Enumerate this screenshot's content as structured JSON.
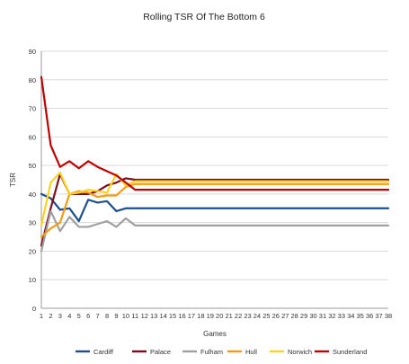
{
  "chart_data": {
    "type": "line",
    "title": "Rolling TSR Of The Bottom 6",
    "xlabel": "Games",
    "ylabel": "TSR",
    "x": [
      1,
      2,
      3,
      4,
      5,
      6,
      7,
      8,
      9,
      10,
      11,
      12,
      13,
      14,
      15,
      16,
      17,
      18,
      19,
      20,
      21,
      22,
      23,
      24,
      25,
      26,
      27,
      28,
      29,
      30,
      31,
      32,
      33,
      34,
      35,
      36,
      37,
      38
    ],
    "xlim": [
      1,
      38
    ],
    "ylim": [
      0,
      90
    ],
    "yticks": [
      0,
      10,
      20,
      30,
      40,
      50,
      60,
      70,
      80,
      90
    ],
    "grid": true,
    "legend_position": "bottom",
    "series": [
      {
        "name": "Cardiff",
        "color": "#1f4e8c",
        "values": [
          40,
          38.5,
          34.5,
          35,
          30.5,
          38,
          37,
          37.5,
          34,
          35,
          35,
          35,
          35,
          35,
          35,
          35,
          35,
          35,
          35,
          35,
          35,
          35,
          35,
          35,
          35,
          35,
          35,
          35,
          35,
          35,
          35,
          35,
          35,
          35,
          35,
          35,
          35,
          35
        ]
      },
      {
        "name": "Palace",
        "color": "#7b0f1e",
        "values": [
          22,
          35,
          47,
          40,
          40,
          40,
          41,
          43,
          44,
          45.5,
          45,
          45,
          45,
          45,
          45,
          45,
          45,
          45,
          45,
          45,
          45,
          45,
          45,
          45,
          45,
          45,
          45,
          45,
          45,
          45,
          45,
          45,
          45,
          45,
          45,
          45,
          45,
          45
        ]
      },
      {
        "name": "Fulham",
        "color": "#a0a0a0",
        "values": [
          20,
          34,
          27,
          32,
          28.5,
          28.5,
          29.5,
          30.5,
          28.5,
          31.5,
          29,
          29,
          29,
          29,
          29,
          29,
          29,
          29,
          29,
          29,
          29,
          29,
          29,
          29,
          29,
          29,
          29,
          29,
          29,
          29,
          29,
          29,
          29,
          29,
          29,
          29,
          29,
          29
        ]
      },
      {
        "name": "Hull",
        "color": "#f39c12",
        "values": [
          25,
          28,
          30,
          40,
          41,
          40.5,
          39,
          39.5,
          39.5,
          42.5,
          43.5,
          43.5,
          43.5,
          43.5,
          43.5,
          43.5,
          43.5,
          43.5,
          43.5,
          43.5,
          43.5,
          43.5,
          43.5,
          43.5,
          43.5,
          43.5,
          43.5,
          43.5,
          43.5,
          43.5,
          43.5,
          43.5,
          43.5,
          43.5,
          43.5,
          43.5,
          43.5,
          43.5
        ]
      },
      {
        "name": "Norwich",
        "color": "#ffd21f",
        "values": [
          29,
          44,
          47.5,
          40,
          40.5,
          41.5,
          41,
          40.5,
          47,
          43,
          44.5,
          44.5,
          44.5,
          44.5,
          44.5,
          44.5,
          44.5,
          44.5,
          44.5,
          44.5,
          44.5,
          44.5,
          44.5,
          44.5,
          44.5,
          44.5,
          44.5,
          44.5,
          44.5,
          44.5,
          44.5,
          44.5,
          44.5,
          44.5,
          44.5,
          44.5,
          44.5,
          44.5
        ]
      },
      {
        "name": "Sunderland",
        "color": "#c00000",
        "values": [
          81,
          57,
          49.5,
          51.5,
          49,
          51.5,
          49.5,
          48,
          46.5,
          44,
          41.5,
          41.5,
          41.5,
          41.5,
          41.5,
          41.5,
          41.5,
          41.5,
          41.5,
          41.5,
          41.5,
          41.5,
          41.5,
          41.5,
          41.5,
          41.5,
          41.5,
          41.5,
          41.5,
          41.5,
          41.5,
          41.5,
          41.5,
          41.5,
          41.5,
          41.5,
          41.5,
          41.5
        ]
      }
    ]
  }
}
